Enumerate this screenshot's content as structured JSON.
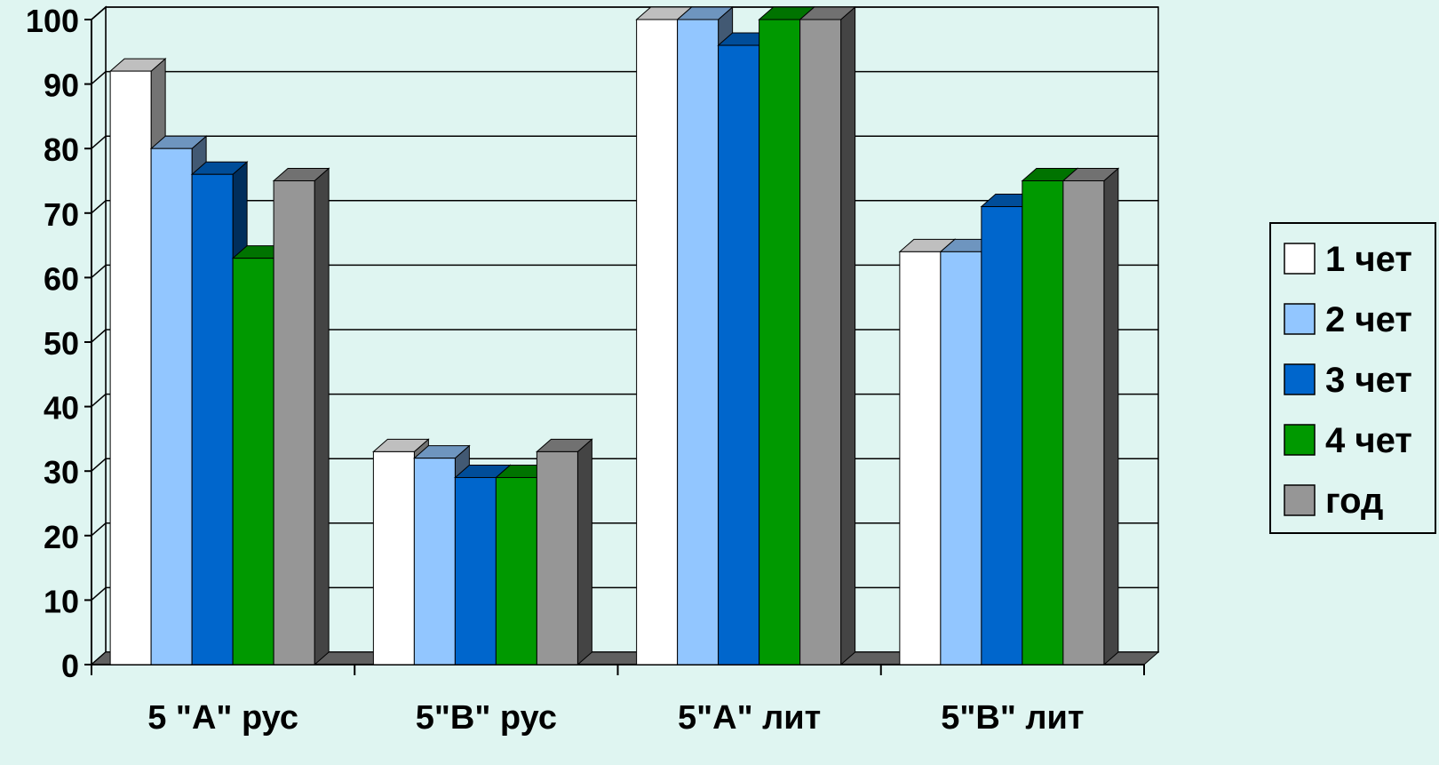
{
  "chart_data": {
    "type": "bar",
    "title": "",
    "xlabel": "",
    "ylabel": "",
    "ylim": [
      0,
      100
    ],
    "yticks": [
      0,
      10,
      20,
      30,
      40,
      50,
      60,
      70,
      80,
      90,
      100
    ],
    "grid": true,
    "legend_position": "right",
    "categories": [
      "5 \"А\" рус",
      "5\"В\" рус",
      "5\"А\" лит",
      "5\"В\" лит"
    ],
    "series": [
      {
        "name": "1 чет",
        "color": "#ffffff",
        "values": [
          92,
          33,
          100,
          64
        ]
      },
      {
        "name": "2 чет",
        "color": "#92c6ff",
        "values": [
          80,
          32,
          100,
          64
        ]
      },
      {
        "name": "3 чет",
        "color": "#0066cc",
        "values": [
          76,
          29,
          96,
          71
        ]
      },
      {
        "name": "4 чет",
        "color": "#009900",
        "values": [
          63,
          29,
          100,
          75
        ]
      },
      {
        "name": "год",
        "color": "#969696",
        "values": [
          75,
          33,
          100,
          75
        ]
      }
    ]
  }
}
